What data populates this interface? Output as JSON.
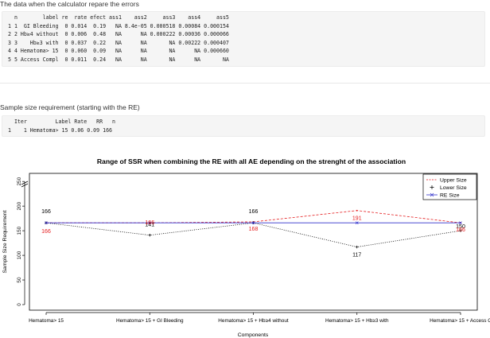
{
  "section1": {
    "heading": "The data when the calculator repare the errors",
    "lines": [
      "  n        label re  rate efect ass1    ass2     ass3    ass4     ass5",
      "1 1  GI Bleeding  0 0.014  0.19   NA 8.4e-05 0.000518 0.00084 0.000154",
      "2 2 Hb≥4 without  0 0.006  0.48   NA      NA 0.000222 0.00036 0.000066",
      "3 3    Hb≥3 with  0 0.037  0.22   NA      NA       NA 0.00222 0.000407",
      "4 4 Hematoma> 15  0 0.060  0.09   NA      NA       NA      NA 0.000660",
      "5 5 Access Compl  0 0.011  0.24   NA      NA       NA      NA       NA"
    ]
  },
  "section2": {
    "heading": "Sample size requirement (starting with the RE)",
    "lines": [
      "  Iter         Label Rate   RR   n",
      "1    1 Hematoma> 15 0.06 0.09 166"
    ]
  },
  "chart_data": {
    "type": "line",
    "title": "Range of SSR when combining the RE with all AE depending on the strenght of the association",
    "xlabel": "Components",
    "ylabel": "Sample Size Requirement",
    "categories": [
      "Hematoma> 15",
      "Hematoma> 15  + GI Bleeding",
      "Hematoma> 15  + Hb≥4 without",
      "Hematoma> 15  + Hb≥3 with",
      "Hematoma> 15  + Access C"
    ],
    "yticks": [
      0,
      50,
      100,
      150,
      200,
      250
    ],
    "ylim": [
      0,
      260
    ],
    "axis_break": true,
    "series": [
      {
        "name": "Upper Size",
        "color": "#e41a1c",
        "line": "dashed",
        "values": [
          166,
          166,
          168,
          191,
          166
        ]
      },
      {
        "name": "Lower Size",
        "color": "#000000",
        "line": "dotted",
        "values": [
          166,
          141,
          166,
          117,
          150
        ]
      },
      {
        "name": "RE Size",
        "color": "#3333cc",
        "line": "solid",
        "values": [
          166,
          166,
          166,
          166,
          166
        ]
      }
    ],
    "data_labels": [
      {
        "series": "Lower Size",
        "color": "#000000",
        "values": [
          "166",
          "141",
          "166",
          "117",
          "150"
        ],
        "offsets": [
          -12,
          -11,
          -12,
          12,
          -3
        ]
      },
      {
        "series": "Upper Size",
        "color": "#e41a1c",
        "values": [
          "166",
          "166",
          "168",
          "191",
          "166"
        ],
        "offsets": [
          13,
          2,
          11,
          12,
          11
        ]
      }
    ],
    "legend": {
      "position": "top-right",
      "entries": [
        "Upper Size",
        "Lower Size",
        "RE Size"
      ]
    }
  }
}
